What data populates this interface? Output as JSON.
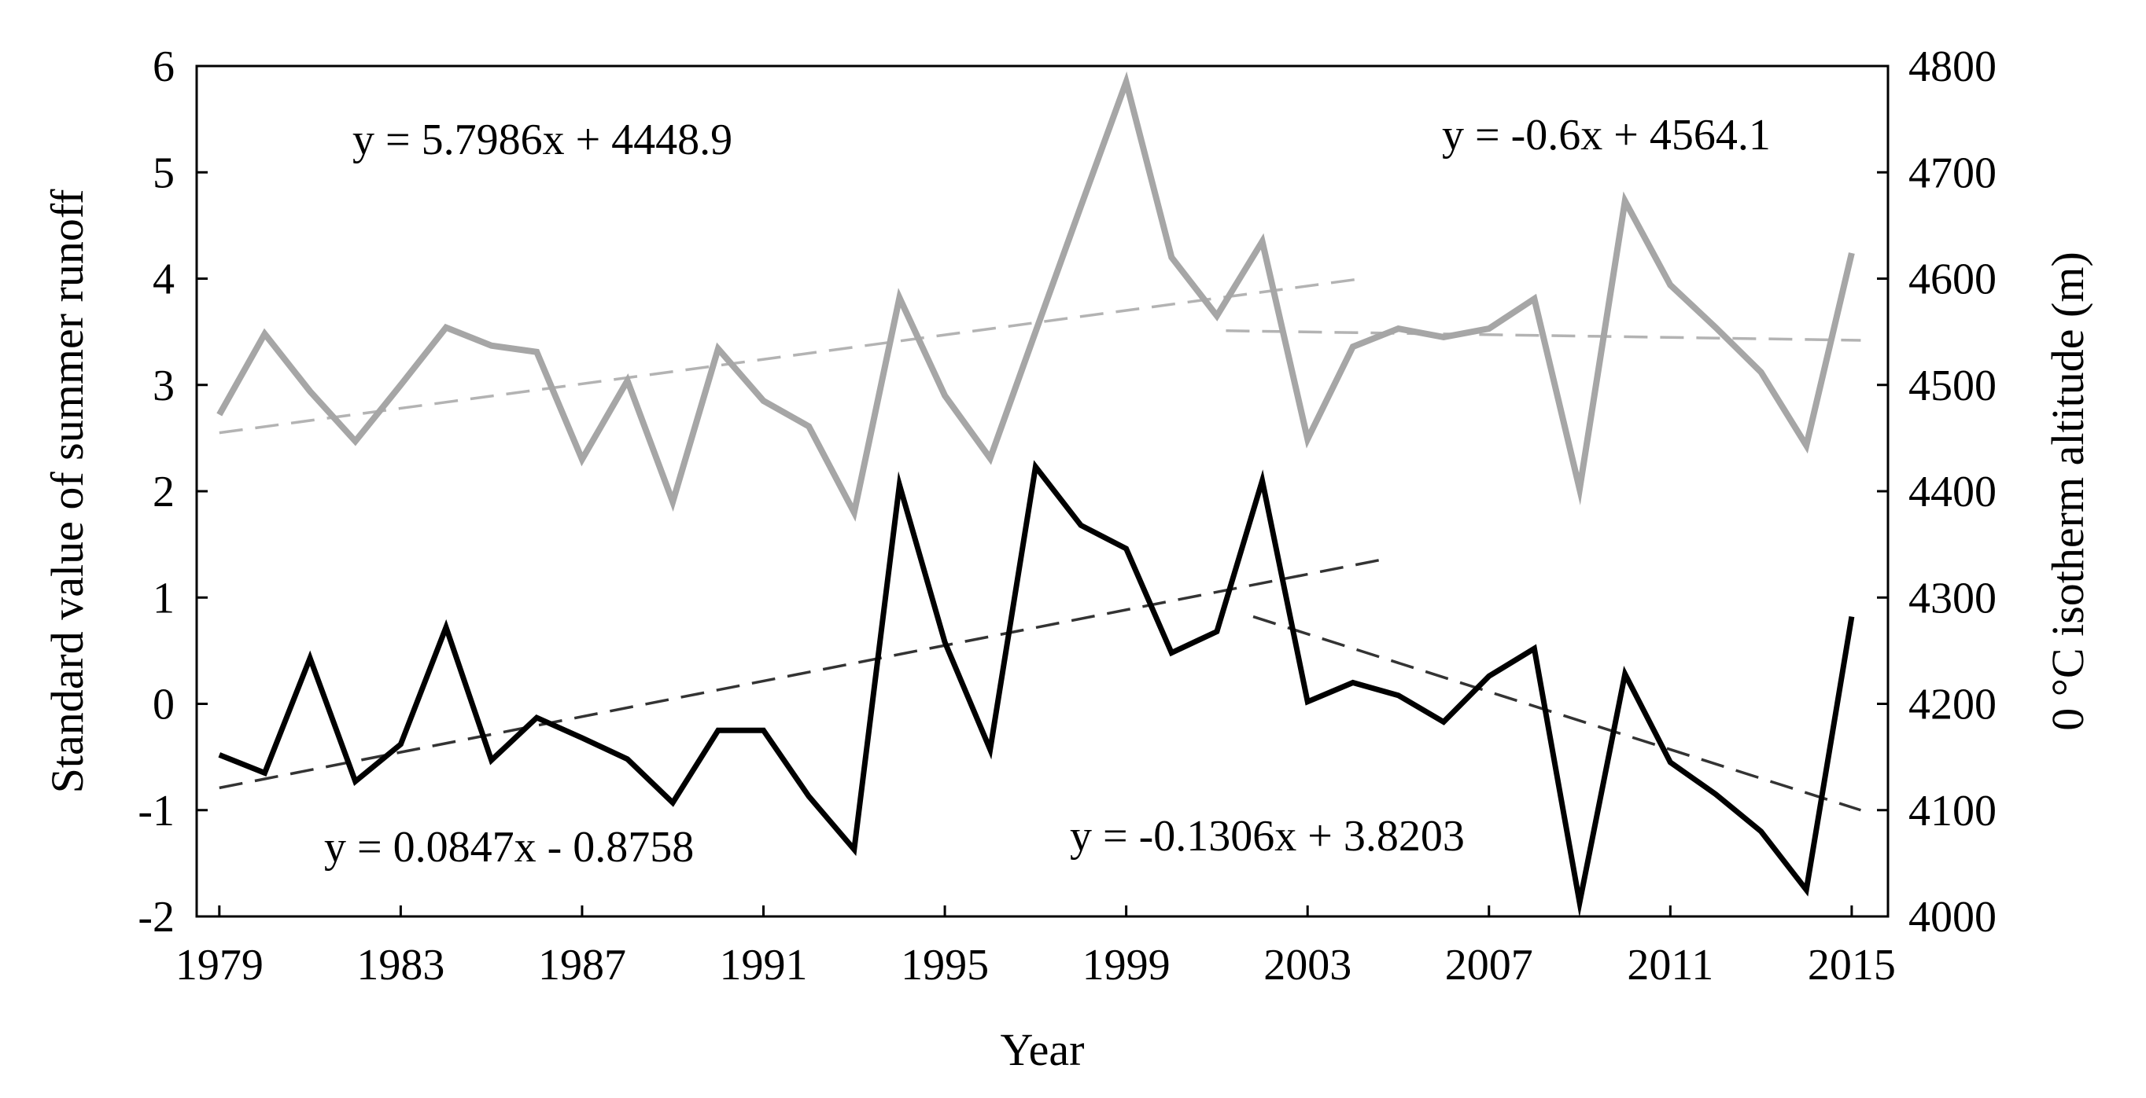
{
  "chart_data": {
    "type": "line",
    "xlabel": "Year",
    "ylabel_left": "Standard value of summer runoff",
    "ylabel_right": "0 °C isotherm altitude (m)",
    "xlim": [
      1978.5,
      2015.8
    ],
    "ylim_left": [
      -2,
      6
    ],
    "ylim_right": [
      4000,
      4800
    ],
    "x_ticks": [
      "1979",
      "1983",
      "1987",
      "1991",
      "1995",
      "1999",
      "2003",
      "2007",
      "2011",
      "2015"
    ],
    "x_tick_values": [
      1979,
      1983,
      1987,
      1991,
      1995,
      1999,
      2003,
      2007,
      2011,
      2015
    ],
    "y_ticks_left": [
      "6",
      "5",
      "4",
      "3",
      "2",
      "1",
      "0",
      "-1",
      "-2"
    ],
    "y_tick_values_left": [
      6,
      5,
      4,
      3,
      2,
      1,
      0,
      -1,
      -2
    ],
    "y_ticks_right": [
      "4800",
      "4700",
      "4600",
      "4500",
      "4400",
      "4300",
      "4200",
      "4100",
      "4000"
    ],
    "y_tick_values_right": [
      4800,
      4700,
      4600,
      4500,
      4400,
      4300,
      4200,
      4100,
      4000
    ],
    "grid": false,
    "colors": {
      "runoff": "#000000",
      "isotherm": "#a6a6a6",
      "runoff_trend": "#333333",
      "isotherm_trend": "#b3b3b3"
    },
    "series": [
      {
        "name": "Summer runoff (standard value)",
        "axis": "left",
        "x": [
          1979,
          1980,
          1981,
          1982,
          1983,
          1984,
          1985,
          1986,
          1987,
          1988,
          1989,
          1990,
          1991,
          1992,
          1993,
          1994,
          1995,
          1996,
          1997,
          1998,
          1999,
          2000,
          2001,
          2002,
          2003,
          2004,
          2005,
          2006,
          2007,
          2008,
          2009,
          2010,
          2011,
          2012,
          2013,
          2014,
          2015
        ],
        "values": [
          -0.48,
          -0.65,
          0.43,
          -0.73,
          -0.38,
          0.72,
          -0.53,
          -0.13,
          -0.32,
          -0.52,
          -0.93,
          -0.25,
          -0.25,
          -0.87,
          -1.37,
          2.06,
          0.58,
          -0.43,
          2.23,
          1.68,
          1.46,
          0.48,
          0.68,
          2.1,
          0.02,
          0.2,
          0.08,
          -0.17,
          0.26,
          0.52,
          -1.87,
          0.28,
          -0.55,
          -0.85,
          -1.2,
          -1.75,
          0.82
        ]
      },
      {
        "name": "0 °C isotherm altitude",
        "axis": "right",
        "x": [
          1979,
          1980,
          1981,
          1982,
          1983,
          1984,
          1985,
          1986,
          1987,
          1988,
          1989,
          1990,
          1991,
          1992,
          1993,
          1994,
          1995,
          1996,
          1997,
          1998,
          1999,
          2000,
          2001,
          2002,
          2003,
          2004,
          2005,
          2006,
          2007,
          2008,
          2009,
          2010,
          2011,
          2012,
          2013,
          2014,
          2015
        ],
        "values": [
          4472,
          4548,
          4494,
          4447,
          4500,
          4554,
          4537,
          4531,
          4430,
          4504,
          4390,
          4534,
          4485,
          4461,
          4380,
          4582,
          4490,
          4431,
          4550,
          4668,
          4785,
          4620,
          4565,
          4635,
          4449,
          4536,
          4553,
          4545,
          4553,
          4581,
          4402,
          4673,
          4594,
          4554,
          4512,
          4443,
          4624
        ]
      }
    ],
    "trends": [
      {
        "name": "runoff-trend-1979-2003",
        "axis": "left",
        "equation": "y = 0.0847x - 0.8758",
        "x": [
          1979,
          2004.8
        ],
        "values": [
          -0.79,
          1.37
        ]
      },
      {
        "name": "runoff-trend-2001-2015",
        "axis": "left",
        "equation": "y = -0.1306x + 3.8203",
        "x": [
          2001.8,
          2015.2
        ],
        "values": [
          0.82,
          -1.0
        ]
      },
      {
        "name": "isotherm-trend-1979-2003",
        "axis": "right",
        "equation": "y = 5.7986x + 4448.9",
        "x": [
          1979,
          2004.2
        ],
        "values": [
          4455,
          4600
        ]
      },
      {
        "name": "isotherm-trend-2001-2015",
        "axis": "right",
        "equation": "y = -0.6x + 4564.1",
        "x": [
          2001.2,
          2015.2
        ],
        "values": [
          4551,
          4542
        ]
      }
    ]
  }
}
